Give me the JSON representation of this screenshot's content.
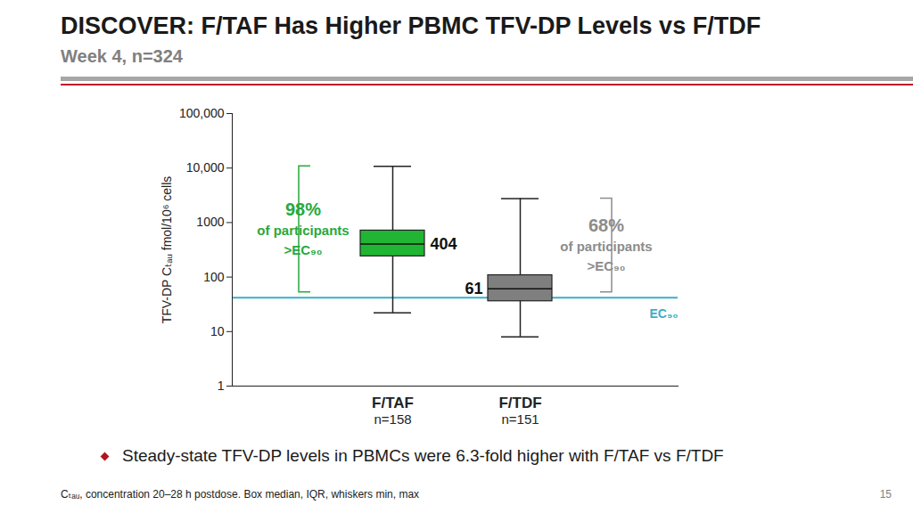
{
  "chart_data": {
    "type": "box",
    "title": "DISCOVER: F/TAF Has Higher PBMC TFV-DP Levels vs F/TDF",
    "subtitle": "Week 4, n=324",
    "y_label": "TFV-DP Cₜₐᵤ fmol/10⁶ cells",
    "categories": [
      "F/TAF",
      "F/TDF"
    ],
    "counts": [
      "n=158",
      "n=151"
    ],
    "min": [
      22,
      8
    ],
    "q1": [
      240,
      36
    ],
    "median": [
      404,
      61
    ],
    "q3": [
      713,
      108
    ],
    "max": [
      10780,
      2760
    ],
    "colors": [
      "#21b534",
      "#7f7f7f"
    ],
    "data_labels": true,
    "log": "y",
    "ylim": [
      1,
      100000
    ],
    "yticks": [
      1,
      10,
      100,
      1000,
      {
        "value": 10000,
        "label": "10,000"
      },
      {
        "value": 100000,
        "label": "100,000"
      }
    ],
    "reference_line": {
      "value": 42,
      "label": "EC₉₀",
      "color": "#3aafc8"
    },
    "annotations": [
      {
        "category": "F/TAF",
        "label": "98%",
        "lines": [
          "of participants",
          ">EC₉₀"
        ],
        "color": "#27a93c"
      },
      {
        "category": "F/TDF",
        "label": "68%",
        "lines": [
          "of participants",
          ">EC₉₀"
        ],
        "color": "#8c8c8c"
      }
    ],
    "bullet": "Steady-state TFV-DP levels in PBMCs were 6.3-fold higher with F/TAF vs F/TDF",
    "footnote": "Cₜₐᵤ, concentration 20–28 h postdose. Box median, IQR, whiskers min, max",
    "page": "15"
  }
}
